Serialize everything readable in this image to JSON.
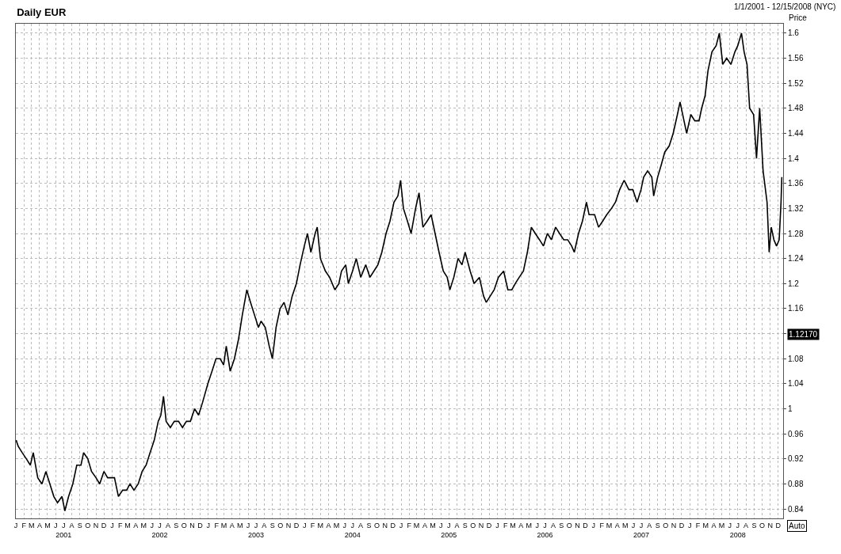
{
  "chart_data": {
    "type": "line",
    "title": "Daily EUR",
    "subtitle": "1/1/2001 - 12/15/2008 (NYC)",
    "ylabel": "Price",
    "x": [
      "2001-01-02",
      "2001-01-10",
      "2001-01-25",
      "2001-02-10",
      "2001-02-25",
      "2001-03-08",
      "2001-03-25",
      "2001-04-10",
      "2001-04-25",
      "2001-05-10",
      "2001-05-25",
      "2001-06-08",
      "2001-06-25",
      "2001-07-06",
      "2001-07-20",
      "2001-08-05",
      "2001-08-20",
      "2001-09-05",
      "2001-09-15",
      "2001-10-01",
      "2001-10-15",
      "2001-11-01",
      "2001-11-15",
      "2001-12-01",
      "2001-12-15",
      "2001-12-28",
      "2002-01-10",
      "2002-01-25",
      "2002-02-10",
      "2002-02-25",
      "2002-03-10",
      "2002-03-25",
      "2002-04-10",
      "2002-04-25",
      "2002-05-10",
      "2002-05-25",
      "2002-06-10",
      "2002-06-25",
      "2002-07-05",
      "2002-07-15",
      "2002-07-25",
      "2002-08-10",
      "2002-08-25",
      "2002-09-10",
      "2002-09-25",
      "2002-10-10",
      "2002-10-25",
      "2002-11-10",
      "2002-11-25",
      "2002-12-10",
      "2002-12-30",
      "2003-01-15",
      "2003-01-30",
      "2003-02-15",
      "2003-02-28",
      "2003-03-10",
      "2003-03-25",
      "2003-04-10",
      "2003-04-25",
      "2003-05-10",
      "2003-05-27",
      "2003-06-10",
      "2003-06-25",
      "2003-07-10",
      "2003-07-20",
      "2003-08-05",
      "2003-08-20",
      "2003-09-01",
      "2003-09-15",
      "2003-09-30",
      "2003-10-15",
      "2003-10-30",
      "2003-11-15",
      "2003-12-01",
      "2003-12-15",
      "2003-12-31",
      "2004-01-12",
      "2004-01-25",
      "2004-02-10",
      "2004-02-18",
      "2004-03-01",
      "2004-03-20",
      "2004-04-05",
      "2004-04-25",
      "2004-05-10",
      "2004-05-20",
      "2004-06-05",
      "2004-06-15",
      "2004-07-01",
      "2004-07-15",
      "2004-08-01",
      "2004-08-20",
      "2004-09-05",
      "2004-09-20",
      "2004-10-05",
      "2004-10-20",
      "2004-11-05",
      "2004-11-20",
      "2004-12-05",
      "2004-12-20",
      "2004-12-30",
      "2005-01-10",
      "2005-01-25",
      "2005-02-08",
      "2005-02-25",
      "2005-03-10",
      "2005-03-25",
      "2005-04-10",
      "2005-04-25",
      "2005-05-10",
      "2005-05-25",
      "2005-06-10",
      "2005-06-25",
      "2005-07-05",
      "2005-07-20",
      "2005-08-05",
      "2005-08-20",
      "2005-09-01",
      "2005-09-20",
      "2005-10-05",
      "2005-10-25",
      "2005-11-10",
      "2005-11-20",
      "2005-12-05",
      "2005-12-20",
      "2006-01-05",
      "2006-01-25",
      "2006-02-10",
      "2006-02-25",
      "2006-03-10",
      "2006-03-25",
      "2006-04-10",
      "2006-04-25",
      "2006-05-10",
      "2006-05-25",
      "2006-06-10",
      "2006-06-25",
      "2006-07-10",
      "2006-07-25",
      "2006-08-10",
      "2006-08-25",
      "2006-09-10",
      "2006-09-25",
      "2006-10-10",
      "2006-10-20",
      "2006-11-05",
      "2006-11-20",
      "2006-12-05",
      "2006-12-15",
      "2007-01-05",
      "2007-01-20",
      "2007-02-05",
      "2007-02-20",
      "2007-03-10",
      "2007-03-25",
      "2007-04-10",
      "2007-04-27",
      "2007-05-15",
      "2007-05-30",
      "2007-06-15",
      "2007-06-30",
      "2007-07-10",
      "2007-07-25",
      "2007-08-10",
      "2007-08-17",
      "2007-09-01",
      "2007-09-15",
      "2007-09-28",
      "2007-10-15",
      "2007-10-30",
      "2007-11-15",
      "2007-11-25",
      "2007-12-10",
      "2007-12-20",
      "2008-01-05",
      "2008-01-20",
      "2008-02-05",
      "2008-02-15",
      "2008-02-28",
      "2008-03-10",
      "2008-03-25",
      "2008-04-10",
      "2008-04-22",
      "2008-05-05",
      "2008-05-20",
      "2008-06-05",
      "2008-06-20",
      "2008-07-01",
      "2008-07-15",
      "2008-07-25",
      "2008-08-05",
      "2008-08-15",
      "2008-08-30",
      "2008-09-10",
      "2008-09-22",
      "2008-10-05",
      "2008-10-20",
      "2008-10-28",
      "2008-11-05",
      "2008-11-15",
      "2008-11-25",
      "2008-12-05",
      "2008-12-12",
      "2008-12-15"
    ],
    "series": [
      {
        "color": "#000000",
        "values": [
          0.95,
          0.94,
          0.93,
          0.92,
          0.91,
          0.93,
          0.89,
          0.88,
          0.9,
          0.88,
          0.86,
          0.85,
          0.86,
          0.837,
          0.86,
          0.88,
          0.91,
          0.91,
          0.93,
          0.92,
          0.9,
          0.89,
          0.88,
          0.9,
          0.89,
          0.89,
          0.89,
          0.86,
          0.87,
          0.87,
          0.88,
          0.87,
          0.88,
          0.9,
          0.91,
          0.93,
          0.95,
          0.98,
          0.99,
          1.02,
          0.98,
          0.97,
          0.98,
          0.98,
          0.97,
          0.98,
          0.98,
          1.0,
          0.99,
          1.01,
          1.04,
          1.06,
          1.08,
          1.08,
          1.07,
          1.1,
          1.06,
          1.08,
          1.11,
          1.15,
          1.19,
          1.17,
          1.15,
          1.13,
          1.14,
          1.13,
          1.1,
          1.08,
          1.13,
          1.16,
          1.17,
          1.15,
          1.18,
          1.2,
          1.23,
          1.26,
          1.28,
          1.25,
          1.28,
          1.29,
          1.24,
          1.22,
          1.21,
          1.19,
          1.2,
          1.22,
          1.23,
          1.2,
          1.22,
          1.24,
          1.21,
          1.23,
          1.21,
          1.22,
          1.23,
          1.25,
          1.28,
          1.3,
          1.33,
          1.34,
          1.365,
          1.32,
          1.3,
          1.28,
          1.32,
          1.345,
          1.29,
          1.3,
          1.31,
          1.28,
          1.25,
          1.22,
          1.21,
          1.19,
          1.21,
          1.24,
          1.23,
          1.25,
          1.22,
          1.2,
          1.21,
          1.18,
          1.17,
          1.18,
          1.19,
          1.21,
          1.22,
          1.19,
          1.19,
          1.2,
          1.21,
          1.22,
          1.25,
          1.29,
          1.28,
          1.27,
          1.26,
          1.28,
          1.27,
          1.29,
          1.28,
          1.27,
          1.27,
          1.26,
          1.25,
          1.28,
          1.3,
          1.33,
          1.31,
          1.31,
          1.29,
          1.3,
          1.31,
          1.32,
          1.33,
          1.35,
          1.365,
          1.35,
          1.35,
          1.33,
          1.35,
          1.37,
          1.38,
          1.37,
          1.34,
          1.37,
          1.39,
          1.41,
          1.42,
          1.44,
          1.47,
          1.49,
          1.46,
          1.44,
          1.47,
          1.46,
          1.46,
          1.48,
          1.5,
          1.54,
          1.57,
          1.58,
          1.6,
          1.55,
          1.56,
          1.55,
          1.57,
          1.58,
          1.6,
          1.57,
          1.55,
          1.48,
          1.47,
          1.4,
          1.48,
          1.38,
          1.33,
          1.25,
          1.29,
          1.27,
          1.26,
          1.27,
          1.33,
          1.37
        ]
      }
    ],
    "xlim": [
      "2001-01-01",
      "2008-12-20"
    ],
    "xticks": [
      {
        "value": "2001-01-01",
        "label": "J"
      },
      {
        "value": "2001-02-01",
        "label": "F"
      },
      {
        "value": "2001-03-01",
        "label": "M"
      },
      {
        "value": "2001-04-01",
        "label": "A"
      },
      {
        "value": "2001-05-01",
        "label": "M"
      },
      {
        "value": "2001-06-01",
        "label": "J"
      },
      {
        "value": "2001-07-01",
        "label": "J\n2001"
      },
      {
        "value": "2001-08-01",
        "label": "A"
      },
      {
        "value": "2001-09-01",
        "label": "S"
      },
      {
        "value": "2001-10-01",
        "label": "O"
      },
      {
        "value": "2001-11-01",
        "label": "N"
      },
      {
        "value": "2001-12-01",
        "label": "D"
      },
      {
        "value": "2002-01-01",
        "label": "J"
      },
      {
        "value": "2002-02-01",
        "label": "F"
      },
      {
        "value": "2002-03-01",
        "label": "M"
      },
      {
        "value": "2002-04-01",
        "label": "A"
      },
      {
        "value": "2002-05-01",
        "label": "M"
      },
      {
        "value": "2002-06-01",
        "label": "J"
      },
      {
        "value": "2002-07-01",
        "label": "J\n2002"
      },
      {
        "value": "2002-08-01",
        "label": "A"
      },
      {
        "value": "2002-09-01",
        "label": "S"
      },
      {
        "value": "2002-10-01",
        "label": "O"
      },
      {
        "value": "2002-11-01",
        "label": "N"
      },
      {
        "value": "2002-12-01",
        "label": "D"
      },
      {
        "value": "2003-01-01",
        "label": "J"
      },
      {
        "value": "2003-02-01",
        "label": "F"
      },
      {
        "value": "2003-03-01",
        "label": "M"
      },
      {
        "value": "2003-04-01",
        "label": "A"
      },
      {
        "value": "2003-05-01",
        "label": "M"
      },
      {
        "value": "2003-06-01",
        "label": "J"
      },
      {
        "value": "2003-07-01",
        "label": "J\n2003"
      },
      {
        "value": "2003-08-01",
        "label": "A"
      },
      {
        "value": "2003-09-01",
        "label": "S"
      },
      {
        "value": "2003-10-01",
        "label": "O"
      },
      {
        "value": "2003-11-01",
        "label": "N"
      },
      {
        "value": "2003-12-01",
        "label": "D"
      },
      {
        "value": "2004-01-01",
        "label": "J"
      },
      {
        "value": "2004-02-01",
        "label": "F"
      },
      {
        "value": "2004-03-01",
        "label": "M"
      },
      {
        "value": "2004-04-01",
        "label": "A"
      },
      {
        "value": "2004-05-01",
        "label": "M"
      },
      {
        "value": "2004-06-01",
        "label": "J"
      },
      {
        "value": "2004-07-01",
        "label": "J\n2004"
      },
      {
        "value": "2004-08-01",
        "label": "A"
      },
      {
        "value": "2004-09-01",
        "label": "S"
      },
      {
        "value": "2004-10-01",
        "label": "O"
      },
      {
        "value": "2004-11-01",
        "label": "N"
      },
      {
        "value": "2004-12-01",
        "label": "D"
      },
      {
        "value": "2005-01-01",
        "label": "J"
      },
      {
        "value": "2005-02-01",
        "label": "F"
      },
      {
        "value": "2005-03-01",
        "label": "M"
      },
      {
        "value": "2005-04-01",
        "label": "A"
      },
      {
        "value": "2005-05-01",
        "label": "M"
      },
      {
        "value": "2005-06-01",
        "label": "J"
      },
      {
        "value": "2005-07-01",
        "label": "J\n2005"
      },
      {
        "value": "2005-08-01",
        "label": "A"
      },
      {
        "value": "2005-09-01",
        "label": "S"
      },
      {
        "value": "2005-10-01",
        "label": "O"
      },
      {
        "value": "2005-11-01",
        "label": "N"
      },
      {
        "value": "2005-12-01",
        "label": "D"
      },
      {
        "value": "2006-01-01",
        "label": "J"
      },
      {
        "value": "2006-02-01",
        "label": "F"
      },
      {
        "value": "2006-03-01",
        "label": "M"
      },
      {
        "value": "2006-04-01",
        "label": "A"
      },
      {
        "value": "2006-05-01",
        "label": "M"
      },
      {
        "value": "2006-06-01",
        "label": "J"
      },
      {
        "value": "2006-07-01",
        "label": "J\n2006"
      },
      {
        "value": "2006-08-01",
        "label": "A"
      },
      {
        "value": "2006-09-01",
        "label": "S"
      },
      {
        "value": "2006-10-01",
        "label": "O"
      },
      {
        "value": "2006-11-01",
        "label": "N"
      },
      {
        "value": "2006-12-01",
        "label": "D"
      },
      {
        "value": "2007-01-01",
        "label": "J"
      },
      {
        "value": "2007-02-01",
        "label": "F"
      },
      {
        "value": "2007-03-01",
        "label": "M"
      },
      {
        "value": "2007-04-01",
        "label": "A"
      },
      {
        "value": "2007-05-01",
        "label": "M"
      },
      {
        "value": "2007-06-01",
        "label": "J"
      },
      {
        "value": "2007-07-01",
        "label": "J\n2007"
      },
      {
        "value": "2007-08-01",
        "label": "A"
      },
      {
        "value": "2007-09-01",
        "label": "S"
      },
      {
        "value": "2007-10-01",
        "label": "O"
      },
      {
        "value": "2007-11-01",
        "label": "N"
      },
      {
        "value": "2007-12-01",
        "label": "D"
      },
      {
        "value": "2008-01-01",
        "label": "J"
      },
      {
        "value": "2008-02-01",
        "label": "F"
      },
      {
        "value": "2008-03-01",
        "label": "M"
      },
      {
        "value": "2008-04-01",
        "label": "A"
      },
      {
        "value": "2008-05-01",
        "label": "M"
      },
      {
        "value": "2008-06-01",
        "label": "J"
      },
      {
        "value": "2008-07-01",
        "label": "J\n2008"
      },
      {
        "value": "2008-08-01",
        "label": "A"
      },
      {
        "value": "2008-09-01",
        "label": "S"
      },
      {
        "value": "2008-10-01",
        "label": "O"
      },
      {
        "value": "2008-11-01",
        "label": "N"
      },
      {
        "value": "2008-12-01",
        "label": "D"
      }
    ],
    "ylim": [
      0.825,
      1.615
    ],
    "yticks": [
      0.84,
      0.88,
      0.92,
      0.96,
      1,
      1.04,
      1.08,
      {
        "value": 1.12,
        "label": null
      },
      1.16,
      1.2,
      1.24,
      1.28,
      1.32,
      1.36,
      1.4,
      1.44,
      1.48,
      1.52,
      1.56,
      1.6
    ],
    "annotations": [
      "1.12170",
      "Auto"
    ],
    "grid": true,
    "marker": "none",
    "line_style": "solid"
  }
}
